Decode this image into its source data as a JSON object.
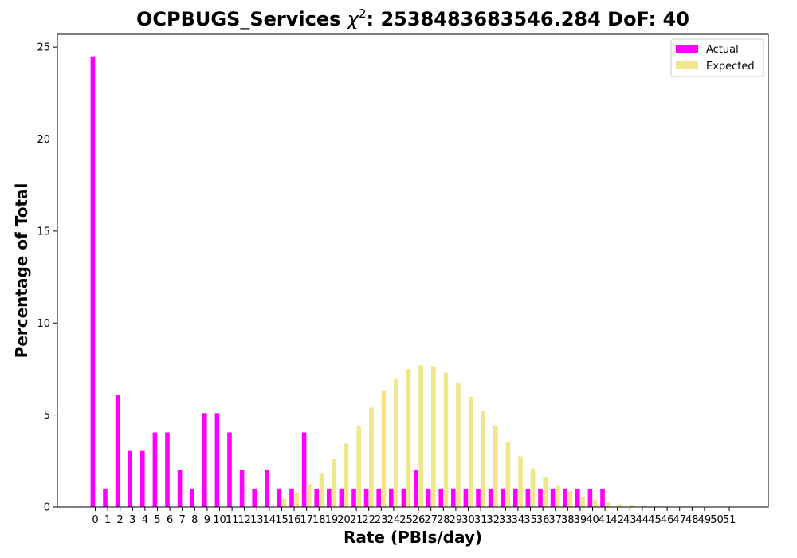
{
  "chart_data": {
    "type": "bar",
    "title": "OCPBUGS_Services χ²: 2538483683546.284 DoF: 40",
    "title_prefix": "OCPBUGS_Services ",
    "title_chi": "χ",
    "title_sup": "2",
    "title_suffix": ": 2538483683546.284 DoF: 40",
    "xlabel": "Rate (PBIs/day)",
    "ylabel": "Percentage of Total",
    "ylim": [
      0,
      25.7
    ],
    "yticks": [
      0,
      5,
      10,
      15,
      20,
      25
    ],
    "categories": [
      "0",
      "1",
      "2",
      "3",
      "4",
      "5",
      "6",
      "7",
      "8",
      "9",
      "10",
      "11",
      "12",
      "13",
      "14",
      "15",
      "16",
      "17",
      "18",
      "19",
      "20",
      "21",
      "22",
      "23",
      "24",
      "25",
      "26",
      "27",
      "28",
      "29",
      "30",
      "31",
      "32",
      "33",
      "34",
      "35",
      "36",
      "37",
      "38",
      "39",
      "40",
      "41",
      "42",
      "43",
      "44",
      "45",
      "46",
      "47",
      "48",
      "49",
      "50",
      "51"
    ],
    "legend_position": "top-right",
    "series": [
      {
        "name": "Actual",
        "color": "#ff00ff",
        "values": [
          24.5,
          1,
          6.1,
          3.05,
          3.05,
          4.05,
          4.05,
          2,
          1,
          5.1,
          5.1,
          4.05,
          2,
          1,
          2,
          1,
          1,
          4.05,
          1,
          1,
          1,
          1,
          1,
          1,
          1,
          1,
          2,
          1,
          1,
          1,
          1,
          1,
          1,
          1,
          1,
          1,
          1,
          1,
          1,
          1,
          1,
          1,
          0,
          0,
          0,
          0,
          0,
          0,
          0,
          0,
          0,
          0
        ]
      },
      {
        "name": "Expected",
        "color": "#f0e68c",
        "values": [
          0,
          0,
          0,
          0,
          0,
          0,
          0,
          0,
          0,
          0,
          0,
          0,
          0,
          0,
          0.02,
          0.45,
          0.8,
          1.25,
          1.85,
          2.6,
          3.45,
          4.4,
          5.4,
          6.3,
          7.0,
          7.5,
          7.7,
          7.65,
          7.3,
          6.75,
          6.0,
          5.2,
          4.4,
          3.55,
          2.75,
          2.1,
          1.6,
          1.15,
          0.85,
          0.55,
          0.4,
          0.25,
          0.15,
          0.08,
          0.05,
          0.03,
          0.02,
          0.01,
          0.005,
          0.003,
          0.002,
          0.001
        ]
      }
    ]
  }
}
